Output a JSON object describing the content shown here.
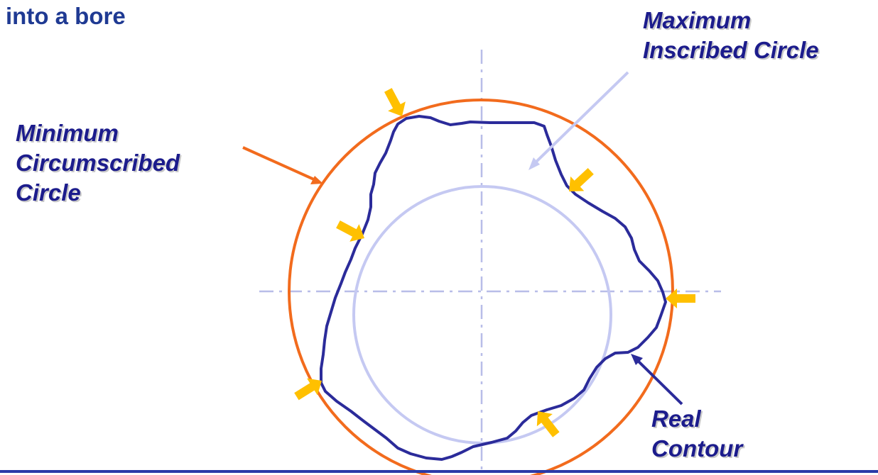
{
  "title": "into a bore",
  "labels": {
    "max_inscribed": [
      "Maximum",
      "Inscribed Circle"
    ],
    "min_circumscribed": [
      "Minimum",
      "Circumscribed",
      "Circle"
    ],
    "real_contour": [
      "Real",
      "Contour"
    ]
  },
  "colors": {
    "title": "#1f3a93",
    "label_text": "#1c1c8c",
    "circumscribed_circle": "#f26b1d",
    "inscribed_circle": "#c5c9f2",
    "contour": "#2b2b9a",
    "contact_arrows": "#ffc000",
    "centerlines": "#b8bde8",
    "bottom_rule": "#2a3aa8"
  }
}
